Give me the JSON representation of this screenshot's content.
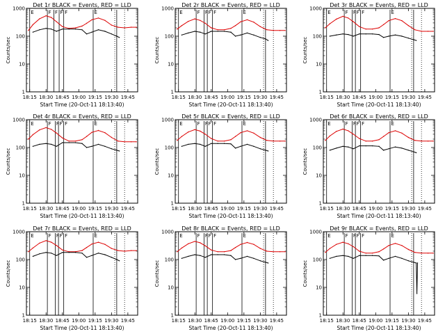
{
  "figure": {
    "ylabel": "Counts/sec",
    "xlabel": "Start Time (20-Oct-11 18:13:40)",
    "x_ticks": [
      "18:15",
      "18:30",
      "18:45",
      "19:00",
      "19:15",
      "19:30",
      "19:45"
    ],
    "y_ticks": [
      "1",
      "10",
      "100",
      "1000"
    ],
    "colors": {
      "events": "#000000",
      "lld": "#dd0000",
      "axes": "#000000"
    }
  },
  "chart_data": [
    {
      "type": "line",
      "title": "Det 1r BLACK = Events, RED = LLD",
      "xlim": [
        18.2,
        19.9
      ],
      "ylim": [
        1,
        1000
      ],
      "yscale": "log",
      "flag_labels": [
        "E",
        "F",
        "F",
        "F",
        "F",
        "E"
      ],
      "flag_times": [
        18.25,
        18.52,
        18.62,
        18.7,
        18.77,
        19.22,
        19.58
      ],
      "dotted_times": [
        19.55,
        19.7
      ],
      "series": [
        {
          "name": "LLD",
          "color": "#dd0000",
          "x": [
            18.23,
            18.3,
            18.4,
            18.5,
            18.58,
            18.66,
            18.75,
            18.85,
            18.95,
            19.05,
            19.12,
            19.2,
            19.3,
            19.4,
            19.5,
            19.6,
            19.7,
            19.8,
            19.88
          ],
          "y": [
            160,
            260,
            420,
            540,
            470,
            330,
            220,
            190,
            200,
            230,
            290,
            390,
            450,
            370,
            250,
            210,
            200,
            210,
            210
          ]
        },
        {
          "name": "Events",
          "color": "#000000",
          "x": [
            18.3,
            18.4,
            18.5,
            18.58,
            18.66,
            18.75,
            18.85,
            18.95,
            19.05,
            19.12,
            19.2,
            19.3,
            19.4,
            19.5,
            19.58,
            19.62
          ],
          "y": [
            140,
            170,
            190,
            180,
            150,
            180,
            180,
            180,
            170,
            120,
            140,
            170,
            150,
            120,
            100,
            90
          ]
        }
      ]
    },
    {
      "type": "line",
      "title": "Det 2r BLACK = Events, RED = LLD",
      "xlim": [
        18.2,
        19.9
      ],
      "ylim": [
        1,
        1000
      ],
      "yscale": "log",
      "flag_labels": [
        "E",
        "F",
        "F",
        "F",
        "F",
        "E"
      ],
      "flag_times": [
        18.25,
        18.52,
        18.64,
        18.69,
        18.77,
        19.22,
        19.58
      ],
      "dotted_times": [
        19.55,
        19.7
      ],
      "series": [
        {
          "name": "LLD",
          "color": "#dd0000",
          "x": [
            18.23,
            18.3,
            18.4,
            18.5,
            18.58,
            18.66,
            18.75,
            18.85,
            18.95,
            19.05,
            19.12,
            19.2,
            19.3,
            19.4,
            19.5,
            19.6,
            19.7,
            19.8,
            19.88
          ],
          "y": [
            180,
            240,
            340,
            420,
            370,
            290,
            200,
            170,
            170,
            190,
            240,
            330,
            390,
            320,
            220,
            170,
            160,
            160,
            160
          ]
        },
        {
          "name": "Events",
          "color": "#000000",
          "x": [
            18.3,
            18.4,
            18.5,
            18.58,
            18.66,
            18.75,
            18.85,
            18.95,
            19.05,
            19.12,
            19.2,
            19.3,
            19.4,
            19.5,
            19.58,
            19.62
          ],
          "y": [
            110,
            130,
            150,
            140,
            120,
            150,
            150,
            150,
            140,
            100,
            110,
            130,
            110,
            90,
            80,
            70
          ]
        }
      ]
    },
    {
      "type": "line",
      "title": "Det 3r BLACK = Events, RED = LLD",
      "xlim": [
        18.2,
        19.9
      ],
      "ylim": [
        1,
        1000
      ],
      "yscale": "log",
      "flag_labels": [
        "E",
        "F",
        "F",
        "F",
        "F",
        "E"
      ],
      "flag_times": [
        18.25,
        18.52,
        18.64,
        18.69,
        18.77,
        19.22,
        19.58
      ],
      "dotted_times": [
        19.55,
        19.7
      ],
      "series": [
        {
          "name": "LLD",
          "color": "#dd0000",
          "x": [
            18.23,
            18.3,
            18.4,
            18.5,
            18.58,
            18.66,
            18.75,
            18.85,
            18.95,
            19.05,
            19.12,
            19.2,
            19.3,
            19.4,
            19.5,
            19.6,
            19.7,
            19.8,
            19.88
          ],
          "y": [
            200,
            280,
            410,
            520,
            450,
            330,
            220,
            180,
            180,
            200,
            260,
            360,
            430,
            360,
            240,
            170,
            150,
            150,
            150
          ]
        },
        {
          "name": "Events",
          "color": "#000000",
          "x": [
            18.3,
            18.4,
            18.5,
            18.58,
            18.66,
            18.75,
            18.85,
            18.95,
            19.05,
            19.12,
            19.2,
            19.3,
            19.4,
            19.5,
            19.58,
            19.62
          ],
          "y": [
            100,
            110,
            120,
            115,
            100,
            120,
            120,
            120,
            115,
            90,
            100,
            110,
            100,
            85,
            75,
            70
          ]
        }
      ]
    },
    {
      "type": "line",
      "title": "Det 4r BLACK = Events, RED = LLD",
      "xlim": [
        18.2,
        19.9
      ],
      "ylim": [
        1,
        1000
      ],
      "yscale": "log",
      "flag_labels": [
        "E",
        "F",
        "F",
        "F",
        "F",
        "E"
      ],
      "flag_times": [
        18.25,
        18.52,
        18.64,
        18.69,
        18.77,
        19.22,
        19.58
      ],
      "dotted_times": [
        19.55,
        19.7
      ],
      "series": [
        {
          "name": "LLD",
          "color": "#dd0000",
          "x": [
            18.23,
            18.3,
            18.4,
            18.5,
            18.58,
            18.66,
            18.75,
            18.85,
            18.95,
            19.05,
            19.12,
            19.2,
            19.3,
            19.4,
            19.5,
            19.6,
            19.7,
            19.8,
            19.88
          ],
          "y": [
            200,
            290,
            430,
            520,
            450,
            330,
            220,
            170,
            170,
            190,
            250,
            350,
            410,
            340,
            230,
            170,
            160,
            160,
            160
          ]
        },
        {
          "name": "Events",
          "color": "#000000",
          "x": [
            18.3,
            18.4,
            18.5,
            18.58,
            18.66,
            18.75,
            18.85,
            18.95,
            19.05,
            19.12,
            19.2,
            19.3,
            19.4,
            19.5,
            19.58,
            19.62
          ],
          "y": [
            110,
            130,
            140,
            130,
            110,
            150,
            150,
            150,
            140,
            100,
            110,
            130,
            110,
            90,
            80,
            75
          ]
        }
      ]
    },
    {
      "type": "line",
      "title": "Det 5r BLACK = Events, RED = LLD",
      "xlim": [
        18.2,
        19.9
      ],
      "ylim": [
        1,
        1000
      ],
      "yscale": "log",
      "flag_labels": [
        "E",
        "F",
        "F",
        "F",
        "F",
        "E"
      ],
      "flag_times": [
        18.25,
        18.52,
        18.64,
        18.69,
        18.77,
        19.22,
        19.58
      ],
      "dotted_times": [
        19.55,
        19.7
      ],
      "series": [
        {
          "name": "LLD",
          "color": "#dd0000",
          "x": [
            18.23,
            18.3,
            18.4,
            18.5,
            18.58,
            18.66,
            18.75,
            18.85,
            18.95,
            19.05,
            19.12,
            19.2,
            19.3,
            19.4,
            19.5,
            19.6,
            19.7,
            19.8,
            19.88
          ],
          "y": [
            180,
            250,
            360,
            440,
            390,
            300,
            210,
            170,
            170,
            190,
            250,
            340,
            400,
            330,
            230,
            180,
            170,
            170,
            170
          ]
        },
        {
          "name": "Events",
          "color": "#000000",
          "x": [
            18.3,
            18.4,
            18.5,
            18.58,
            18.66,
            18.75,
            18.85,
            18.95,
            19.05,
            19.12,
            19.2,
            19.3,
            19.4,
            19.5,
            19.58,
            19.62
          ],
          "y": [
            110,
            130,
            140,
            130,
            110,
            140,
            140,
            140,
            135,
            95,
            110,
            130,
            110,
            90,
            80,
            75
          ]
        }
      ]
    },
    {
      "type": "line",
      "title": "Det 6r BLACK = Events, RED = LLD",
      "xlim": [
        18.2,
        19.9
      ],
      "ylim": [
        1,
        1000
      ],
      "yscale": "log",
      "flag_labels": [
        "E",
        "F",
        "F",
        "F",
        "F",
        "E"
      ],
      "flag_times": [
        18.25,
        18.52,
        18.64,
        18.69,
        18.77,
        19.22,
        19.58
      ],
      "dotted_times": [
        19.55,
        19.7
      ],
      "series": [
        {
          "name": "LLD",
          "color": "#dd0000",
          "x": [
            18.23,
            18.3,
            18.4,
            18.5,
            18.58,
            18.66,
            18.75,
            18.85,
            18.95,
            19.05,
            19.12,
            19.2,
            19.3,
            19.4,
            19.5,
            19.6,
            19.7,
            19.8,
            19.88
          ],
          "y": [
            180,
            260,
            380,
            460,
            400,
            300,
            210,
            170,
            170,
            190,
            250,
            340,
            400,
            330,
            230,
            180,
            170,
            170,
            170
          ]
        },
        {
          "name": "Events",
          "color": "#000000",
          "x": [
            18.3,
            18.4,
            18.5,
            18.58,
            18.66,
            18.75,
            18.85,
            18.95,
            19.05,
            19.12,
            19.2,
            19.3,
            19.4,
            19.5,
            19.58,
            19.62
          ],
          "y": [
            80,
            95,
            110,
            105,
            90,
            115,
            115,
            115,
            110,
            80,
            90,
            105,
            95,
            80,
            70,
            65
          ]
        }
      ]
    },
    {
      "type": "line",
      "title": "Det 7r BLACK = Events, RED = LLD",
      "xlim": [
        18.2,
        19.9
      ],
      "ylim": [
        1,
        1000
      ],
      "yscale": "log",
      "flag_labels": [
        "E",
        "F",
        "F",
        "F",
        "F",
        "E"
      ],
      "flag_times": [
        18.25,
        18.52,
        18.64,
        18.69,
        18.77,
        19.22,
        19.58
      ],
      "dotted_times": [
        19.55,
        19.7
      ],
      "series": [
        {
          "name": "LLD",
          "color": "#dd0000",
          "x": [
            18.23,
            18.3,
            18.4,
            18.5,
            18.58,
            18.66,
            18.75,
            18.85,
            18.95,
            19.05,
            19.12,
            19.2,
            19.3,
            19.4,
            19.5,
            19.6,
            19.7,
            19.8,
            19.88
          ],
          "y": [
            190,
            260,
            390,
            480,
            420,
            320,
            220,
            190,
            190,
            210,
            270,
            360,
            420,
            350,
            250,
            210,
            200,
            210,
            210
          ]
        },
        {
          "name": "Events",
          "color": "#000000",
          "x": [
            18.3,
            18.4,
            18.5,
            18.58,
            18.66,
            18.75,
            18.85,
            18.95,
            19.05,
            19.12,
            19.2,
            19.3,
            19.4,
            19.5,
            19.58,
            19.62
          ],
          "y": [
            130,
            160,
            180,
            170,
            140,
            180,
            180,
            180,
            170,
            120,
            140,
            170,
            150,
            120,
            100,
            90
          ]
        }
      ]
    },
    {
      "type": "line",
      "title": "Det 8r BLACK = Events, RED = LLD",
      "xlim": [
        18.2,
        19.9
      ],
      "ylim": [
        1,
        1000
      ],
      "yscale": "log",
      "flag_labels": [
        "E",
        "F",
        "F",
        "F",
        "F",
        "E"
      ],
      "flag_times": [
        18.25,
        18.52,
        18.64,
        18.69,
        18.77,
        19.22,
        19.58
      ],
      "dotted_times": [
        19.55,
        19.7
      ],
      "series": [
        {
          "name": "LLD",
          "color": "#dd0000",
          "x": [
            18.23,
            18.3,
            18.4,
            18.5,
            18.58,
            18.66,
            18.75,
            18.85,
            18.95,
            19.05,
            19.12,
            19.2,
            19.3,
            19.4,
            19.5,
            19.6,
            19.7,
            19.8,
            19.88
          ],
          "y": [
            190,
            260,
            370,
            450,
            400,
            310,
            220,
            190,
            190,
            210,
            270,
            350,
            410,
            350,
            250,
            200,
            190,
            190,
            190
          ]
        },
        {
          "name": "Events",
          "color": "#000000",
          "x": [
            18.3,
            18.4,
            18.5,
            18.58,
            18.66,
            18.75,
            18.85,
            18.95,
            19.05,
            19.12,
            19.2,
            19.3,
            19.4,
            19.5,
            19.58,
            19.62
          ],
          "y": [
            110,
            130,
            150,
            140,
            120,
            150,
            150,
            150,
            140,
            100,
            110,
            130,
            110,
            90,
            80,
            75
          ]
        }
      ]
    },
    {
      "type": "line",
      "title": "Det 9r BLACK = Events, RED = LLD",
      "xlim": [
        18.2,
        19.9
      ],
      "ylim": [
        1,
        1000
      ],
      "yscale": "log",
      "flag_labels": [
        "E",
        "F",
        "F",
        "F",
        "F",
        "E"
      ],
      "flag_times": [
        18.25,
        18.52,
        18.64,
        18.69,
        18.77,
        19.22,
        19.58
      ],
      "dotted_times": [
        19.55,
        19.7
      ],
      "series": [
        {
          "name": "LLD",
          "color": "#dd0000",
          "x": [
            18.23,
            18.3,
            18.4,
            18.5,
            18.58,
            18.66,
            18.75,
            18.85,
            18.95,
            19.05,
            19.12,
            19.2,
            19.3,
            19.4,
            19.5,
            19.6,
            19.7,
            19.8,
            19.88
          ],
          "y": [
            180,
            250,
            350,
            420,
            370,
            290,
            200,
            170,
            170,
            190,
            240,
            320,
            380,
            320,
            230,
            180,
            170,
            170,
            170
          ]
        },
        {
          "name": "Events",
          "color": "#000000",
          "x": [
            18.3,
            18.4,
            18.5,
            18.58,
            18.66,
            18.75,
            18.85,
            18.95,
            19.05,
            19.12,
            19.2,
            19.3,
            19.4,
            19.5,
            19.58,
            19.62,
            19.63,
            19.64
          ],
          "y": [
            110,
            130,
            140,
            130,
            110,
            140,
            140,
            140,
            135,
            95,
            110,
            130,
            110,
            90,
            80,
            75,
            6,
            75
          ]
        }
      ]
    }
  ]
}
